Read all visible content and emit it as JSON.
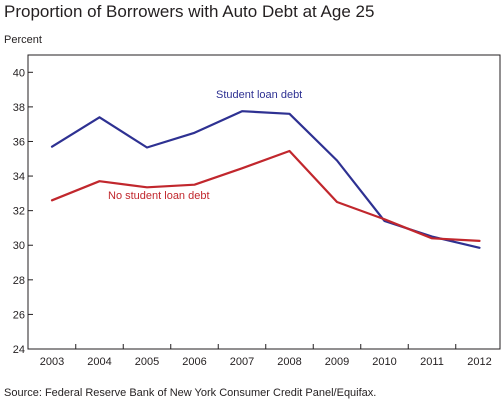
{
  "chart_data": {
    "type": "line",
    "title": "Proportion of Borrowers with Auto Debt at Age 25",
    "ylabel": "Percent",
    "xlabel": "",
    "x": [
      2003,
      2004,
      2005,
      2006,
      2007,
      2008,
      2009,
      2010,
      2011,
      2012
    ],
    "ylim": [
      24,
      41
    ],
    "yticks": [
      24,
      26,
      28,
      30,
      32,
      34,
      36,
      38,
      40
    ],
    "grid": false,
    "legend": "inline labels",
    "series": [
      {
        "name": "Student loan debt",
        "color": "#2e3192",
        "values": [
          35.7,
          37.4,
          35.65,
          36.5,
          37.75,
          37.6,
          34.9,
          31.4,
          30.5,
          29.85
        ]
      },
      {
        "name": "No student loan debt",
        "color": "#c1272d",
        "values": [
          32.6,
          33.7,
          33.35,
          33.5,
          34.45,
          35.45,
          32.5,
          31.5,
          30.4,
          30.25
        ]
      }
    ],
    "source": "Source: Federal Reserve Bank of New York Consumer Credit Panel/Equifax."
  }
}
